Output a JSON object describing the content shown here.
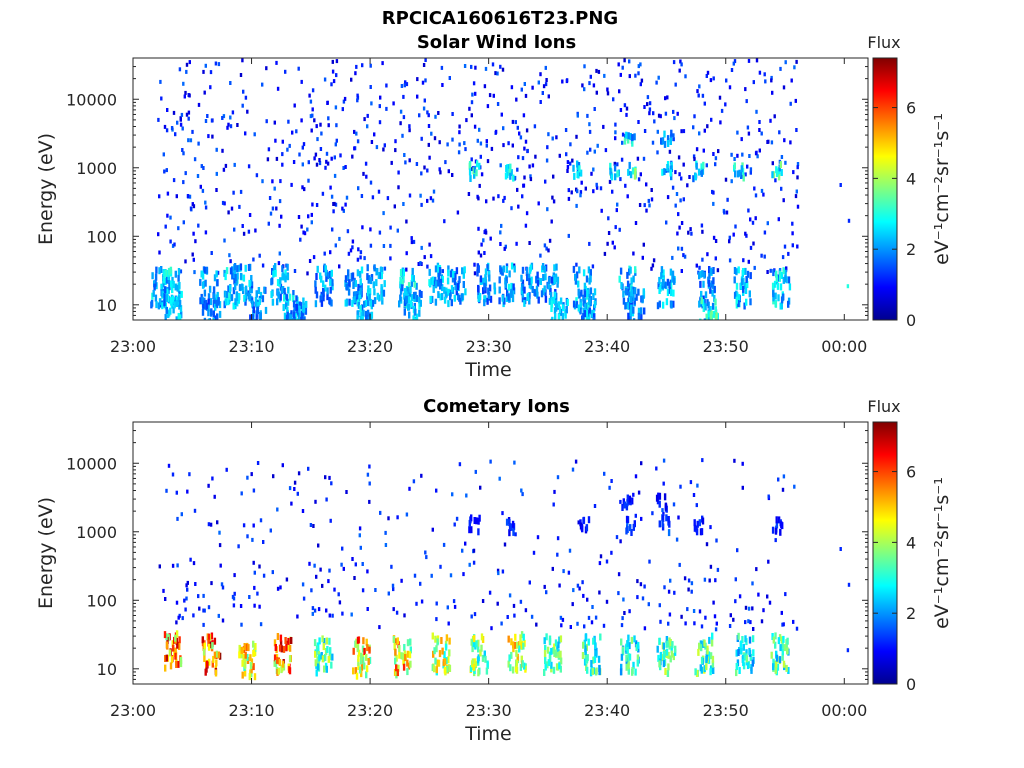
{
  "figure_title": "RPCICA160616T23.PNG",
  "colormap": [
    "#00008f",
    "#0000ff",
    "#0080ff",
    "#00ffff",
    "#80ff80",
    "#ffff00",
    "#ff8000",
    "#ff0000",
    "#800000"
  ],
  "chart_data": [
    {
      "type": "heatmap",
      "title": "Solar Wind Ions",
      "xlabel": "Time",
      "ylabel": "Energy (eV)",
      "x_ticks": [
        "23:00",
        "23:10",
        "23:20",
        "23:30",
        "23:40",
        "23:50",
        "00:00"
      ],
      "x_tick_values": [
        0,
        10,
        20,
        30,
        40,
        50,
        60
      ],
      "xlim": [
        0,
        62
      ],
      "y_scale": "log",
      "y_ticks": [
        "10",
        "100",
        "1000",
        "10000"
      ],
      "y_tick_values": [
        10,
        100,
        1000,
        10000
      ],
      "ylim": [
        6,
        40000
      ],
      "colorbar": {
        "label": "Flux",
        "unit": "eV⁻¹cm⁻²sr⁻¹s⁻¹",
        "ticks": [
          "0",
          "2",
          "4",
          "6"
        ],
        "tick_values": [
          0,
          2,
          4,
          6
        ],
        "range": [
          0,
          7.4
        ]
      },
      "data_time_range": [
        2,
        66
      ],
      "clusters": [
        {
          "t": 2.2,
          "e": 20,
          "v": 2.6
        },
        {
          "t": 3.1,
          "e": 20,
          "v": 2.9
        },
        {
          "t": 3.3,
          "e": 10,
          "v": 2.5
        },
        {
          "t": 6.3,
          "e": 20,
          "v": 2.4
        },
        {
          "t": 6.5,
          "e": 7,
          "v": 2.2
        },
        {
          "t": 8.3,
          "e": 20,
          "v": 2.7
        },
        {
          "t": 9.2,
          "e": 22,
          "v": 2.5
        },
        {
          "t": 10.5,
          "e": 10,
          "v": 2.3
        },
        {
          "t": 12.3,
          "e": 22,
          "v": 2.5
        },
        {
          "t": 13.2,
          "e": 10,
          "v": 2.6
        },
        {
          "t": 13.8,
          "e": 7,
          "v": 2.2
        },
        {
          "t": 16.0,
          "e": 22,
          "v": 2.3
        },
        {
          "t": 18.5,
          "e": 22,
          "v": 2.4
        },
        {
          "t": 19.3,
          "e": 10,
          "v": 2.6
        },
        {
          "t": 20.4,
          "e": 22,
          "v": 2.4
        },
        {
          "t": 23.1,
          "e": 20,
          "v": 2.9
        },
        {
          "t": 23.5,
          "e": 10,
          "v": 2.6
        },
        {
          "t": 25.6,
          "e": 22,
          "v": 2.5
        },
        {
          "t": 27.2,
          "e": 22,
          "v": 2.4
        },
        {
          "t": 29.7,
          "e": 22,
          "v": 2.3
        },
        {
          "t": 31.5,
          "e": 22,
          "v": 2.5
        },
        {
          "t": 33.4,
          "e": 22,
          "v": 2.4
        },
        {
          "t": 35.0,
          "e": 22,
          "v": 2.3
        },
        {
          "t": 35.9,
          "e": 7,
          "v": 2.6
        },
        {
          "t": 37.8,
          "e": 20,
          "v": 2.6
        },
        {
          "t": 38.2,
          "e": 10,
          "v": 2.4
        },
        {
          "t": 41.7,
          "e": 20,
          "v": 2.7
        },
        {
          "t": 42.3,
          "e": 10,
          "v": 2.3
        },
        {
          "t": 44.9,
          "e": 20,
          "v": 2.5
        },
        {
          "t": 48.3,
          "e": 20,
          "v": 2.2
        },
        {
          "t": 48.5,
          "e": 7,
          "v": 3.3
        },
        {
          "t": 51.4,
          "e": 20,
          "v": 2.6
        },
        {
          "t": 54.6,
          "e": 20,
          "v": 2.8
        },
        {
          "t": 28.7,
          "e": 1000,
          "v": 3.1
        },
        {
          "t": 31.8,
          "e": 1000,
          "v": 3.0
        },
        {
          "t": 37.3,
          "e": 1000,
          "v": 2.9
        },
        {
          "t": 40.6,
          "e": 1000,
          "v": 3.2
        },
        {
          "t": 41.9,
          "e": 1000,
          "v": 3.5
        },
        {
          "t": 44.9,
          "e": 1000,
          "v": 3.1
        },
        {
          "t": 47.6,
          "e": 1000,
          "v": 2.9
        },
        {
          "t": 51.0,
          "e": 1000,
          "v": 3.0
        },
        {
          "t": 54.2,
          "e": 1000,
          "v": 3.3
        },
        {
          "t": 41.8,
          "e": 3000,
          "v": 2.9
        },
        {
          "t": 44.9,
          "e": 3000,
          "v": 2.6
        }
      ]
    },
    {
      "type": "heatmap",
      "title": "Cometary Ions",
      "xlabel": "Time",
      "ylabel": "Energy (eV)",
      "x_ticks": [
        "23:00",
        "23:10",
        "23:20",
        "23:30",
        "23:40",
        "23:50",
        "00:00"
      ],
      "x_tick_values": [
        0,
        10,
        20,
        30,
        40,
        50,
        60
      ],
      "xlim": [
        0,
        62
      ],
      "y_scale": "log",
      "y_ticks": [
        "10",
        "100",
        "1000",
        "10000"
      ],
      "y_tick_values": [
        10,
        100,
        1000,
        10000
      ],
      "ylim": [
        6,
        40000
      ],
      "colorbar": {
        "label": "Flux",
        "unit": "eV⁻¹cm⁻²sr⁻¹s⁻¹",
        "ticks": [
          "0",
          "2",
          "4",
          "6"
        ],
        "tick_values": [
          0,
          2,
          4,
          6
        ],
        "range": [
          0,
          7.4
        ]
      },
      "data_time_range": [
        2,
        66
      ],
      "clusters": [
        {
          "t": 3.3,
          "e": 20,
          "v": 6.1
        },
        {
          "t": 6.5,
          "e": 18,
          "v": 6.4
        },
        {
          "t": 9.6,
          "e": 16,
          "v": 5.2
        },
        {
          "t": 12.6,
          "e": 18,
          "v": 6.3
        },
        {
          "t": 16.0,
          "e": 17,
          "v": 3.9
        },
        {
          "t": 19.2,
          "e": 16,
          "v": 5.7
        },
        {
          "t": 22.6,
          "e": 17,
          "v": 5.5
        },
        {
          "t": 25.9,
          "e": 18,
          "v": 4.7
        },
        {
          "t": 29.1,
          "e": 18,
          "v": 4.3
        },
        {
          "t": 32.3,
          "e": 19,
          "v": 4.9
        },
        {
          "t": 35.3,
          "e": 18,
          "v": 4.0
        },
        {
          "t": 38.6,
          "e": 18,
          "v": 3.6
        },
        {
          "t": 41.8,
          "e": 18,
          "v": 3.4
        },
        {
          "t": 44.9,
          "e": 18,
          "v": 3.8
        },
        {
          "t": 48.1,
          "e": 18,
          "v": 3.9
        },
        {
          "t": 51.5,
          "e": 18,
          "v": 3.2
        },
        {
          "t": 54.5,
          "e": 19,
          "v": 3.7
        },
        {
          "t": 28.7,
          "e": 1400,
          "v": 1.4
        },
        {
          "t": 31.6,
          "e": 1400,
          "v": 1.3
        },
        {
          "t": 38.0,
          "e": 1400,
          "v": 1.2
        },
        {
          "t": 41.8,
          "e": 1400,
          "v": 1.5
        },
        {
          "t": 44.7,
          "e": 1400,
          "v": 1.5
        },
        {
          "t": 47.7,
          "e": 1400,
          "v": 1.3
        },
        {
          "t": 54.3,
          "e": 1400,
          "v": 1.4
        },
        {
          "t": 41.6,
          "e": 3000,
          "v": 1.2
        },
        {
          "t": 44.5,
          "e": 3000,
          "v": 1.1
        }
      ]
    }
  ]
}
